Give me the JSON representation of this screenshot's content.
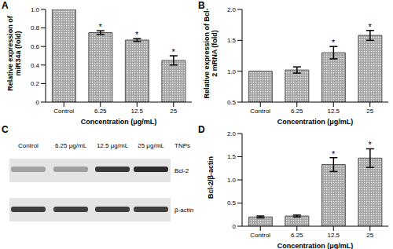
{
  "chart_data": [
    {
      "panel": "A",
      "type": "bar",
      "categories": [
        "Control",
        "6.25",
        "12.5",
        "25"
      ],
      "values": [
        1.0,
        0.75,
        0.67,
        0.45
      ],
      "errors": [
        0,
        0.02,
        0.015,
        0.05
      ],
      "significance": [
        null,
        "*",
        "*",
        "*"
      ],
      "color": "#a6a6a6",
      "ylim": [
        0,
        1
      ],
      "yticks": [
        0,
        0.2,
        0.4,
        0.6,
        0.8,
        {
          "value": 1,
          "label": "1.0"
        }
      ],
      "ylabel": "Relative expression of miR34a (fold)",
      "xlabel": "Concentration (μg/mL)",
      "grid": false
    },
    {
      "panel": "B",
      "type": "bar",
      "categories": [
        "Control",
        "6.25",
        "12.5",
        "25"
      ],
      "values": [
        1.0,
        1.02,
        1.3,
        1.58
      ],
      "errors": [
        0,
        0.05,
        0.1,
        0.08
      ],
      "significance": [
        null,
        null,
        "*",
        "*"
      ],
      "color": "#a6a6a6",
      "ylim": [
        0.5,
        2
      ],
      "yticks": [
        0.5,
        {
          "value": 1,
          "label": "1.0"
        },
        1.5,
        {
          "value": 2,
          "label": "2.0"
        }
      ],
      "ylabel": "Relative expression of Bcl-2 mRNA (fold)",
      "xlabel": "Concentration (μg/mL)",
      "grid": false
    },
    {
      "panel": "C",
      "type": "blot",
      "lanes": [
        "Control",
        "6.25 μg/mL",
        "12.5 μg/mL",
        "25 μg/mL"
      ],
      "treatment": "TNPs",
      "bands": [
        "Bcl-2",
        "β-actin"
      ]
    },
    {
      "panel": "D",
      "type": "bar",
      "categories": [
        "Control",
        "6.25",
        "12.5",
        "25"
      ],
      "values": [
        0.2,
        0.22,
        1.33,
        1.47
      ],
      "errors": [
        0.02,
        0.02,
        0.15,
        0.2
      ],
      "significance": [
        null,
        null,
        "*",
        "*"
      ],
      "color": "#a6a6a6",
      "ylim": [
        0,
        2
      ],
      "yticks": [
        0,
        0.5,
        {
          "value": 1,
          "label": "1.0"
        },
        1.5,
        {
          "value": 2,
          "label": "2.0"
        }
      ],
      "ylabel": "Bcl-2/β-actin",
      "xlabel": "Concentration (μg/mL)",
      "grid": false
    }
  ]
}
